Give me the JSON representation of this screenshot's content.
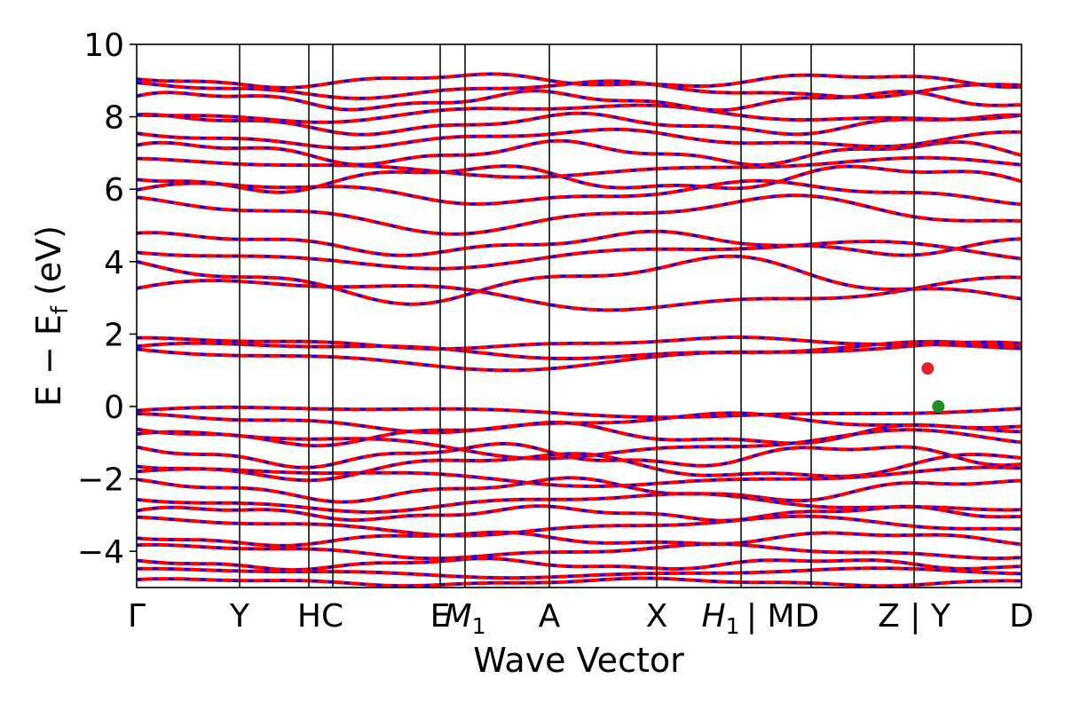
{
  "chart_data": {
    "type": "line",
    "xlabel": "Wave Vector",
    "ylabel": "E − E",
    "ylabel_sub": "f",
    "ylabel_unit": " (eV)",
    "ylim": [
      -5,
      10
    ],
    "yticks": [
      {
        "value": 10,
        "label": "10"
      },
      {
        "value": 8,
        "label": "8"
      },
      {
        "value": 6,
        "label": "6"
      },
      {
        "value": 4,
        "label": "4"
      },
      {
        "value": 2,
        "label": "2"
      },
      {
        "value": 0,
        "label": "0"
      },
      {
        "value": -2,
        "label": "−2"
      },
      {
        "value": -4,
        "label": "−4"
      }
    ],
    "kpath_labels": [
      "Γ",
      "Y",
      "HC",
      "E",
      "M",
      "1",
      "A",
      "X",
      "H",
      "1",
      "| MD",
      "Z | Y",
      "D"
    ],
    "series": [
      {
        "color": "#ff0000"
      },
      {
        "color": "#0000ff"
      }
    ],
    "markers": [
      {
        "color": "#e8202a",
        "x": 0.894,
        "y": 1.05
      },
      {
        "color": "#228b22",
        "x": 0.906,
        "y": 0.0
      }
    ],
    "conduction_bands": [
      {
        "base": 1.55,
        "amp": 0.18,
        "freq": 1.3,
        "phase": 0.4
      },
      {
        "base": 1.75,
        "amp": 0.12,
        "freq": 1.6,
        "phase": 1.1
      },
      {
        "base": 1.4,
        "amp": 0.3,
        "freq": 1.0,
        "phase": 2.2
      },
      {
        "base": 3.1,
        "amp": 0.35,
        "freq": 1.2,
        "phase": 0.3
      },
      {
        "base": 3.5,
        "amp": 0.5,
        "freq": 1.5,
        "phase": 1.8
      },
      {
        "base": 4.2,
        "amp": 0.3,
        "freq": 1.1,
        "phase": 2.6
      },
      {
        "base": 4.5,
        "amp": 0.25,
        "freq": 1.9,
        "phase": 0.9
      },
      {
        "base": 5.3,
        "amp": 0.4,
        "freq": 1.4,
        "phase": 1.5
      },
      {
        "base": 5.9,
        "amp": 0.25,
        "freq": 1.7,
        "phase": 0.2
      },
      {
        "base": 6.3,
        "amp": 0.3,
        "freq": 2.1,
        "phase": 2.9
      },
      {
        "base": 6.6,
        "amp": 0.2,
        "freq": 1.2,
        "phase": 1.3
      },
      {
        "base": 7.0,
        "amp": 0.25,
        "freq": 2.4,
        "phase": 0.6
      },
      {
        "base": 7.4,
        "amp": 0.2,
        "freq": 1.8,
        "phase": 2.1
      },
      {
        "base": 7.8,
        "amp": 0.22,
        "freq": 2.2,
        "phase": 1.0
      },
      {
        "base": 8.1,
        "amp": 0.2,
        "freq": 1.5,
        "phase": 3.1
      },
      {
        "base": 8.45,
        "amp": 0.2,
        "freq": 2.6,
        "phase": 0.4
      },
      {
        "base": 8.75,
        "amp": 0.18,
        "freq": 1.9,
        "phase": 1.7
      },
      {
        "base": 9.0,
        "amp": 0.15,
        "freq": 2.3,
        "phase": 2.5
      }
    ],
    "valence_bands": [
      {
        "base": -0.15,
        "amp": 0.12,
        "freq": 1.1,
        "phase": 0.2
      },
      {
        "base": -0.45,
        "amp": 0.2,
        "freq": 1.6,
        "phase": 1.2
      },
      {
        "base": -0.75,
        "amp": 0.25,
        "freq": 2.0,
        "phase": 2.3
      },
      {
        "base": -1.05,
        "amp": 0.3,
        "freq": 1.3,
        "phase": 0.7
      },
      {
        "base": -1.35,
        "amp": 0.25,
        "freq": 2.4,
        "phase": 1.9
      },
      {
        "base": -1.65,
        "amp": 0.3,
        "freq": 1.8,
        "phase": 2.8
      },
      {
        "base": -1.95,
        "amp": 0.2,
        "freq": 1.2,
        "phase": 0.5
      },
      {
        "base": -2.3,
        "amp": 0.25,
        "freq": 2.1,
        "phase": 1.6
      },
      {
        "base": -2.65,
        "amp": 0.2,
        "freq": 1.5,
        "phase": 2.4
      },
      {
        "base": -2.95,
        "amp": 0.15,
        "freq": 2.6,
        "phase": 0.3
      },
      {
        "base": -3.3,
        "amp": 0.2,
        "freq": 1.4,
        "phase": 1.4
      },
      {
        "base": -3.65,
        "amp": 0.15,
        "freq": 2.2,
        "phase": 2.7
      },
      {
        "base": -4.0,
        "amp": 0.15,
        "freq": 1.7,
        "phase": 0.9
      },
      {
        "base": -4.35,
        "amp": 0.12,
        "freq": 2.5,
        "phase": 2.0
      },
      {
        "base": -4.6,
        "amp": 0.1,
        "freq": 1.3,
        "phase": 1.1
      },
      {
        "base": -4.85,
        "amp": 0.08,
        "freq": 2.0,
        "phase": 0.6
      }
    ]
  }
}
